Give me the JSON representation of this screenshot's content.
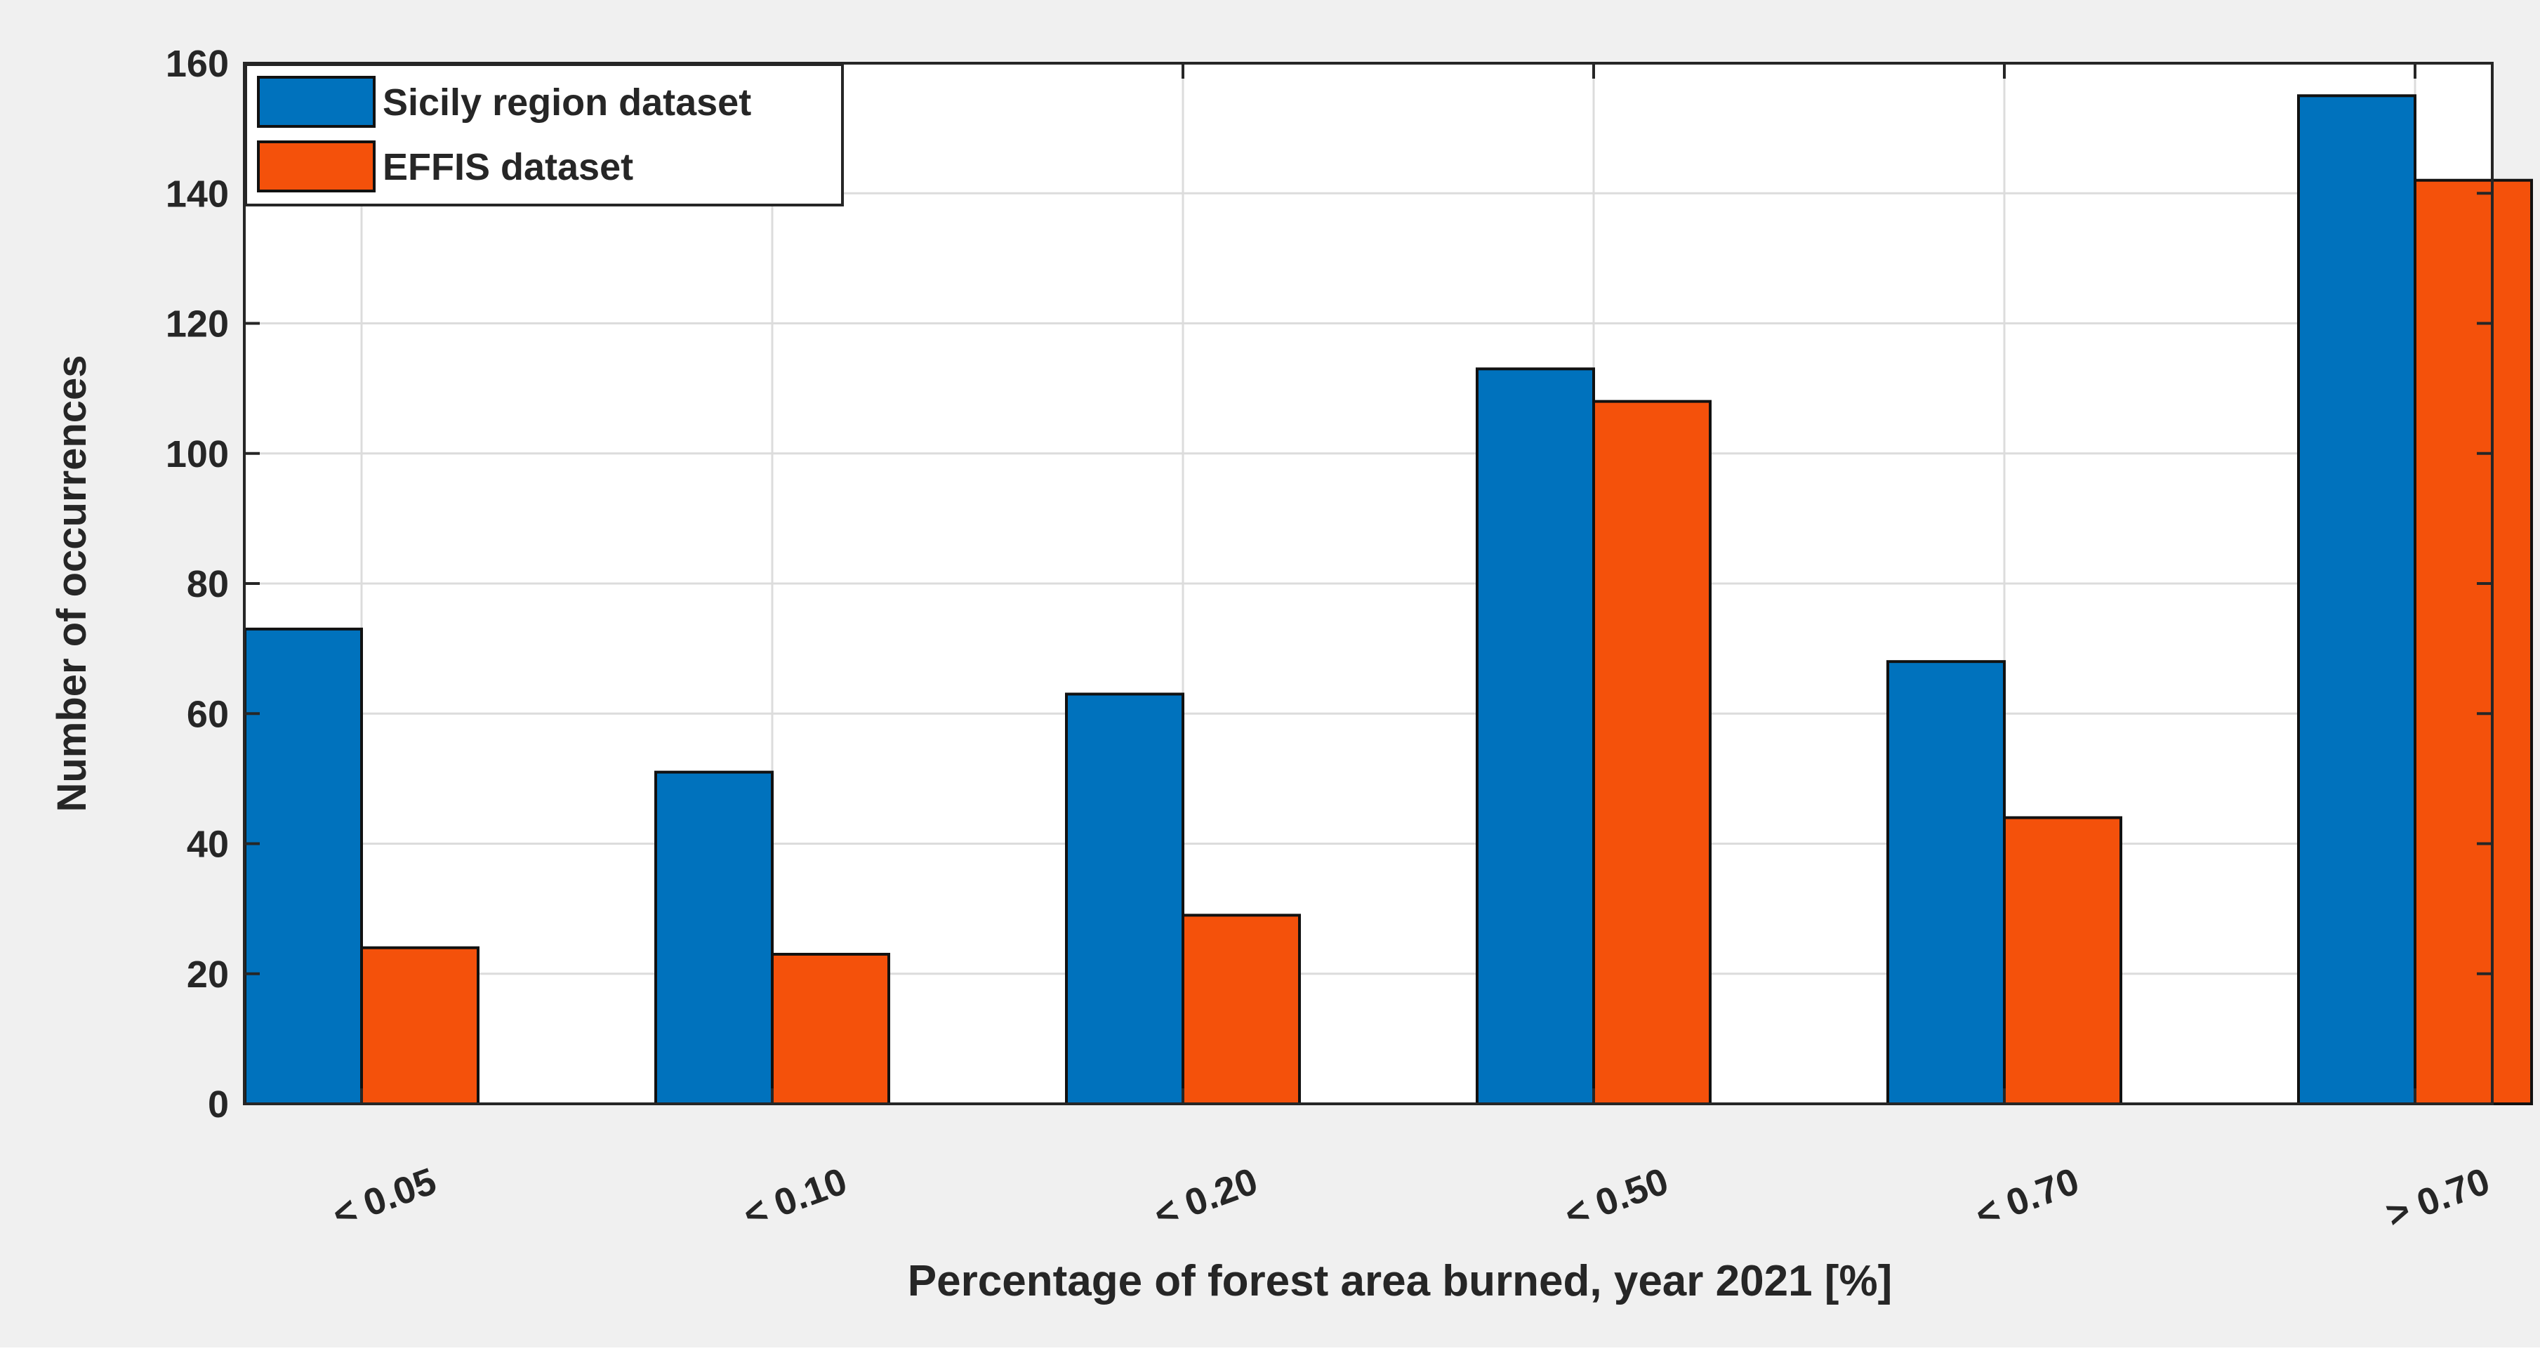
{
  "chart_data": {
    "type": "bar",
    "title": "",
    "xlabel": "Percentage of forest area burned, year 2021 [%]",
    "ylabel": "Number of occurrences",
    "categories": [
      "< 0.05",
      "< 0.10",
      "< 0.20",
      "< 0.50",
      "< 0.70",
      "> 0.70"
    ],
    "series": [
      {
        "name": "Sicily region dataset",
        "values": [
          73,
          51,
          63,
          113,
          68,
          155
        ],
        "color": "#0072BD"
      },
      {
        "name": "EFFIS dataset",
        "values": [
          24,
          23,
          29,
          108,
          44,
          142
        ],
        "color": "#F4510B"
      }
    ],
    "ylim": [
      0,
      160
    ],
    "yticks": [
      0,
      20,
      40,
      60,
      80,
      100,
      120,
      140,
      160
    ],
    "grid": true,
    "legend_position": "top-left",
    "background": "#f0f0f0",
    "axes_background": "#ffffff",
    "grid_color": "#dcdcdc"
  }
}
